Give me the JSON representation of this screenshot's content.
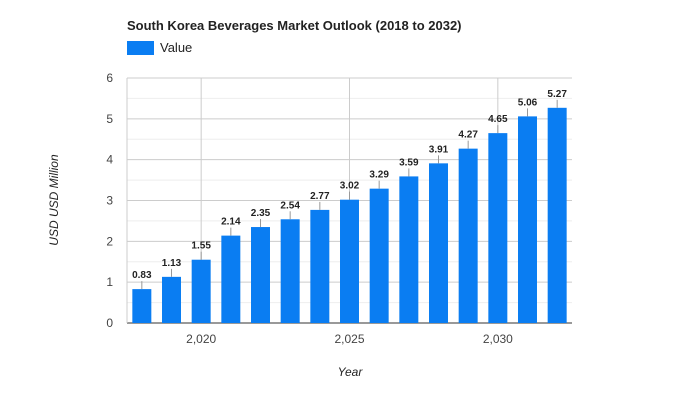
{
  "chart_data": {
    "type": "bar",
    "title": "South Korea Beverages Market Outlook (2018 to 2032)",
    "legend": {
      "position": "top-left",
      "entries": [
        "Value"
      ]
    },
    "xlabel": "Year",
    "ylabel": "USD USD Million",
    "x": [
      2018,
      2019,
      2020,
      2021,
      2022,
      2023,
      2024,
      2025,
      2026,
      2027,
      2028,
      2029,
      2030,
      2031,
      2032
    ],
    "x_ticks": [
      2020,
      2025,
      2030
    ],
    "x_tick_labels": [
      "2,020",
      "2,025",
      "2,030"
    ],
    "series": [
      {
        "name": "Value",
        "color": "#0a7df2",
        "values": [
          0.83,
          1.13,
          1.55,
          2.14,
          2.35,
          2.54,
          2.77,
          3.02,
          3.29,
          3.59,
          3.91,
          4.27,
          4.65,
          5.06,
          5.27
        ]
      }
    ],
    "ylim": [
      0,
      6
    ],
    "y_ticks": [
      0,
      1,
      2,
      3,
      4,
      5,
      6
    ],
    "grid": true
  }
}
